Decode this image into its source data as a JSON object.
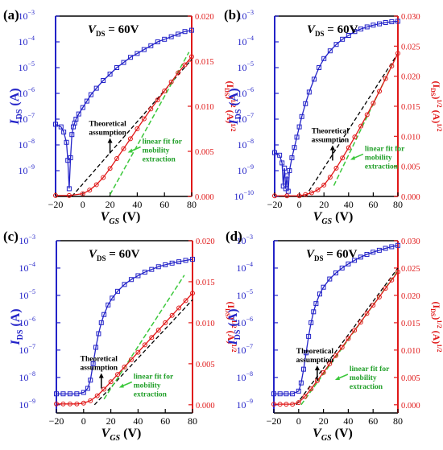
{
  "chart_data": [
    {
      "type": "line",
      "panel_label": "(a)",
      "annotation_vds": "60V",
      "xlabel": "V",
      "xlabel_sub": "GS",
      "xlabel_unit": "(V)",
      "xlim": [
        -20,
        80
      ],
      "x_ticks": [
        -20,
        0,
        20,
        40,
        60,
        80
      ],
      "left_axis": {
        "label": "I",
        "label_sub": "DS",
        "label_unit": "(A)",
        "scale": "log",
        "ylim_exp": [
          -10,
          -3
        ],
        "tick_exponents": [
          -9,
          -8,
          -7,
          -6,
          -5,
          -4,
          -3
        ],
        "color": "#2323c8"
      },
      "right_axis": {
        "label": "(I",
        "label_sub": "DS",
        "label_sup": "1/2",
        "label_unit": "(A)",
        "label_unit_sup": "1/2",
        "ylim": [
          0,
          0.02
        ],
        "ticks": [
          "0.000",
          "0.005",
          "0.010",
          "0.015",
          "0.020"
        ],
        "color": "#e01818"
      },
      "annotations": {
        "assumption": [
          "Theoretical",
          "assumption"
        ],
        "fit": [
          "linear fit for",
          "mobility",
          "extraction"
        ]
      },
      "series": [
        {
          "axis": "left",
          "marker": "square",
          "color": "#2323c8",
          "x": [
            -20,
            -16,
            -14,
            -12,
            -11,
            -10,
            -9,
            -8,
            -7,
            -6,
            -5,
            -3,
            0,
            3,
            6,
            10,
            15,
            20,
            25,
            30,
            35,
            40,
            45,
            50,
            55,
            60,
            65,
            70,
            75,
            80
          ],
          "y_exp": [
            -7.2,
            -7.3,
            -7.5,
            -7.9,
            -8.6,
            -9.7,
            -8.5,
            -7.6,
            -7.3,
            -7.15,
            -7.0,
            -6.8,
            -6.55,
            -6.3,
            -6.05,
            -5.8,
            -5.5,
            -5.25,
            -5.0,
            -4.8,
            -4.6,
            -4.45,
            -4.3,
            -4.15,
            -4.0,
            -3.9,
            -3.8,
            -3.7,
            -3.6,
            -3.55
          ]
        },
        {
          "axis": "right",
          "marker": "circle",
          "color": "#e01818",
          "x": [
            -20,
            -10,
            0,
            5,
            10,
            15,
            20,
            25,
            30,
            35,
            40,
            45,
            50,
            55,
            60,
            65,
            70,
            75,
            80
          ],
          "y": [
            0.0001,
            0.0001,
            0.0003,
            0.0007,
            0.0013,
            0.0021,
            0.0031,
            0.0042,
            0.0053,
            0.0064,
            0.0075,
            0.0086,
            0.0097,
            0.0107,
            0.0117,
            0.0127,
            0.0137,
            0.0146,
            0.0155
          ]
        }
      ],
      "theoretical_line": {
        "x": [
          -8,
          80
        ],
        "y": [
          0,
          0.0152
        ]
      },
      "fit_line": {
        "x": [
          20,
          78
        ],
        "y": [
          0.0002,
          0.016
        ]
      },
      "arrow_at": {
        "x": 20,
        "y": 0.0046
      }
    },
    {
      "type": "line",
      "panel_label": "(b)",
      "annotation_vds": "60V",
      "xlabel": "V",
      "xlabel_sub": "GS",
      "xlabel_unit": "(V)",
      "xlim": [
        -20,
        80
      ],
      "x_ticks": [
        -20,
        0,
        20,
        40,
        60,
        80
      ],
      "left_axis": {
        "label": "I",
        "label_sub": "DS",
        "label_unit": "(A)",
        "scale": "log",
        "ylim_exp": [
          -10,
          -3
        ],
        "tick_exponents": [
          -10,
          -9,
          -8,
          -7,
          -6,
          -5,
          -4,
          -3
        ],
        "color": "#2323c8"
      },
      "right_axis": {
        "label": "(I",
        "label_sub": "DS",
        "label_sup": "1/2",
        "label_unit": "(A)",
        "label_unit_sup": "1/2",
        "ylim": [
          0,
          0.03
        ],
        "ticks": [
          "0.000",
          "0.005",
          "0.010",
          "0.015",
          "0.020",
          "0.025",
          "0.030"
        ],
        "color": "#e01818"
      },
      "annotations": {
        "assumption": [
          "Theoretical",
          "assumption"
        ],
        "fit": [
          "linear fit for",
          "mobility",
          "extraction"
        ]
      },
      "series": [
        {
          "axis": "left",
          "marker": "square",
          "color": "#2323c8",
          "x": [
            -20,
            -16,
            -14,
            -13,
            -12,
            -11,
            -10,
            -9,
            -8,
            -6,
            -4,
            -2,
            0,
            2,
            5,
            8,
            12,
            16,
            20,
            25,
            30,
            35,
            40,
            45,
            50,
            55,
            60,
            65,
            70,
            75,
            80
          ],
          "y_exp": [
            -8.3,
            -8.4,
            -8.7,
            -9.6,
            -8.9,
            -9.7,
            -9.2,
            -9.8,
            -9.0,
            -8.5,
            -8.1,
            -7.7,
            -7.3,
            -6.9,
            -6.4,
            -5.95,
            -5.45,
            -5.0,
            -4.65,
            -4.35,
            -4.1,
            -3.9,
            -3.75,
            -3.6,
            -3.5,
            -3.42,
            -3.35,
            -3.3,
            -3.25,
            -3.22,
            -3.2
          ]
        },
        {
          "axis": "right",
          "marker": "circle",
          "color": "#e01818",
          "x": [
            -20,
            -10,
            0,
            5,
            10,
            15,
            20,
            25,
            30,
            35,
            40,
            45,
            50,
            55,
            60,
            65,
            70,
            75,
            80
          ],
          "y": [
            0.0001,
            0.0001,
            0.0001,
            0.0003,
            0.0006,
            0.0011,
            0.0019,
            0.0032,
            0.0047,
            0.0064,
            0.0081,
            0.0099,
            0.0117,
            0.0136,
            0.0155,
            0.0175,
            0.0196,
            0.0217,
            0.0238
          ]
        }
      ],
      "theoretical_line": {
        "x": [
          5,
          80
        ],
        "y": [
          0,
          0.0238
        ]
      },
      "fit_line": {
        "x": [
          28,
          76
        ],
        "y": [
          0.0018,
          0.0222
        ]
      },
      "arrow_at": {
        "x": 27,
        "y": 0.0057
      }
    },
    {
      "type": "line",
      "panel_label": "(c)",
      "annotation_vds": "60V",
      "xlabel": "V",
      "xlabel_sub": "GS",
      "xlabel_unit": "(V)",
      "xlim": [
        -20,
        80
      ],
      "x_ticks": [
        -20,
        0,
        20,
        40,
        60,
        80
      ],
      "left_axis": {
        "label": "I",
        "label_sub": "DS",
        "label_unit": "(A)",
        "scale": "log",
        "ylim_exp": [
          -9.3,
          -3
        ],
        "tick_exponents": [
          -9,
          -8,
          -7,
          -6,
          -5,
          -4,
          -3
        ],
        "color": "#2323c8"
      },
      "right_axis": {
        "label": "(I",
        "label_sub": "DS",
        "label_sup": "1/2",
        "label_unit": "(A)",
        "label_unit_sup": "1/2",
        "ylim": [
          -0.001,
          0.02
        ],
        "ticks": [
          "0.000",
          "0.005",
          "0.010",
          "0.015",
          "0.020"
        ],
        "color": "#e01818"
      },
      "annotations": {
        "assumption": [
          "Theoretical",
          "assumption"
        ],
        "fit": [
          "linear fit for",
          "mobility",
          "extraction"
        ]
      },
      "series": [
        {
          "axis": "left",
          "marker": "square",
          "color": "#2323c8",
          "x": [
            -20,
            -15,
            -10,
            -5,
            0,
            3,
            5,
            7,
            9,
            11,
            13,
            15,
            18,
            21,
            25,
            30,
            35,
            40,
            45,
            50,
            55,
            60,
            65,
            70,
            75,
            80
          ],
          "y_exp": [
            -8.6,
            -8.6,
            -8.6,
            -8.6,
            -8.55,
            -8.4,
            -8.1,
            -7.5,
            -6.9,
            -6.4,
            -6.0,
            -5.7,
            -5.35,
            -5.1,
            -4.85,
            -4.6,
            -4.42,
            -4.28,
            -4.15,
            -4.05,
            -3.95,
            -3.88,
            -3.82,
            -3.77,
            -3.72,
            -3.68
          ]
        },
        {
          "axis": "right",
          "marker": "circle",
          "color": "#e01818",
          "x": [
            -20,
            -15,
            -10,
            -5,
            0,
            5,
            10,
            15,
            20,
            25,
            30,
            35,
            40,
            45,
            50,
            55,
            60,
            65,
            70,
            75,
            80
          ],
          "y": [
            0.0001,
            0.0001,
            0.0001,
            0.0001,
            0.0002,
            0.0005,
            0.0011,
            0.0019,
            0.0028,
            0.0037,
            0.0046,
            0.0055,
            0.0064,
            0.0073,
            0.0082,
            0.0091,
            0.01,
            0.0109,
            0.0118,
            0.0127,
            0.0136
          ]
        }
      ],
      "theoretical_line": {
        "x": [
          8,
          80
        ],
        "y": [
          0,
          0.0128
        ]
      },
      "fit_line": {
        "x": [
          15,
          74
        ],
        "y": [
          0.0007,
          0.0158
        ]
      },
      "arrow_at": {
        "x": 13,
        "y": 0.0018
      }
    },
    {
      "type": "line",
      "panel_label": "(d)",
      "annotation_vds": "60V",
      "xlabel": "V",
      "xlabel_sub": "GS",
      "xlabel_unit": "(V)",
      "xlim": [
        -20,
        80
      ],
      "x_ticks": [
        -20,
        0,
        20,
        40,
        60,
        80
      ],
      "left_axis": {
        "label": "I",
        "label_sub": "DS",
        "label_unit": "(A)",
        "scale": "log",
        "ylim_exp": [
          -9.3,
          -3
        ],
        "tick_exponents": [
          -9,
          -8,
          -7,
          -6,
          -5,
          -4,
          -3
        ],
        "color": "#2323c8"
      },
      "right_axis": {
        "label": "(I",
        "label_sub": "DS",
        "label_sup": "1/2",
        "label_unit": "(A)",
        "label_unit_sup": "1/2",
        "ylim": [
          -0.0015,
          0.03
        ],
        "ticks": [
          "0.000",
          "0.005",
          "0.010",
          "0.015",
          "0.020",
          "0.025",
          "0.030"
        ],
        "color": "#e01818"
      },
      "annotations": {
        "assumption": [
          "Theoretical",
          "assumption"
        ],
        "fit": [
          "linear fit for",
          "mobility",
          "extraction"
        ]
      },
      "series": [
        {
          "axis": "left",
          "marker": "square",
          "color": "#2323c8",
          "x": [
            -20,
            -15,
            -10,
            -5,
            0,
            2,
            4,
            6,
            8,
            10,
            12,
            14,
            17,
            20,
            25,
            30,
            35,
            40,
            45,
            50,
            55,
            60,
            65,
            70,
            75,
            80
          ],
          "y_exp": [
            -8.6,
            -8.6,
            -8.6,
            -8.6,
            -8.5,
            -8.2,
            -7.7,
            -7.1,
            -6.5,
            -6.0,
            -5.6,
            -5.3,
            -4.95,
            -4.7,
            -4.4,
            -4.18,
            -4.0,
            -3.85,
            -3.72,
            -3.6,
            -3.5,
            -3.42,
            -3.35,
            -3.28,
            -3.22,
            -3.17
          ]
        },
        {
          "axis": "right",
          "marker": "circle",
          "color": "#e01818",
          "x": [
            -20,
            -15,
            -10,
            -5,
            0,
            5,
            10,
            15,
            20,
            25,
            30,
            35,
            40,
            45,
            50,
            55,
            60,
            65,
            70,
            75,
            80
          ],
          "y": [
            0.0001,
            0.0001,
            0.0001,
            0.0001,
            0.0004,
            0.0015,
            0.0029,
            0.0044,
            0.0059,
            0.0075,
            0.009,
            0.0105,
            0.0121,
            0.0136,
            0.0151,
            0.0167,
            0.0182,
            0.0197,
            0.0213,
            0.0228,
            0.0243
          ]
        }
      ],
      "theoretical_line": {
        "x": [
          -2,
          80
        ],
        "y": [
          0,
          0.025
        ]
      },
      "fit_line": {
        "x": [
          2,
          80
        ],
        "y": [
          0,
          0.0245
        ]
      },
      "arrow_at": {
        "x": 15,
        "y": 0.0041
      }
    }
  ]
}
